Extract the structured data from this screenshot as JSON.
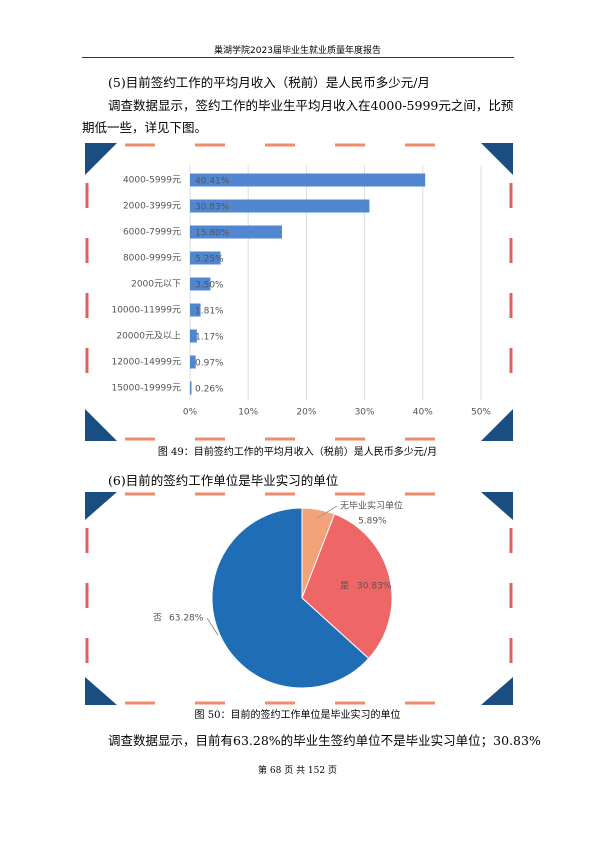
{
  "header": {
    "title": "巢湖学院2023届毕业生就业质量年度报告"
  },
  "section5": {
    "heading": "(5)目前签约工作的平均月收入（税前）是人民币多少元/月",
    "paragraph": "调查数据显示，签约工作的毕业生平均月收入在4000-5999元之间，比预期低一些，详见下图。"
  },
  "section6": {
    "heading": "(6)目前的签约工作单位是毕业实习的单位",
    "paragraph": "调查数据显示，目前有63.28%的毕业生签约单位不是毕业实习单位；30.83%"
  },
  "chart_data": [
    {
      "type": "bar",
      "orientation": "horizontal",
      "caption": "图 49：目前签约工作的平均月收入（税前）是人民币多少元/月",
      "categories": [
        "4000-5999元",
        "2000-3999元",
        "6000-7999元",
        "8000-9999元",
        "2000元以下",
        "10000-11999元",
        "20000元及以上",
        "12000-14999元",
        "15000-19999元"
      ],
      "values": [
        40.41,
        30.83,
        15.8,
        5.25,
        3.5,
        1.81,
        1.17,
        0.97,
        0.26
      ],
      "value_labels": [
        "40.41%",
        "30.83%",
        "15.80%",
        "5.25%",
        "3.50%",
        "1.81%",
        "1.17%",
        "0.97%",
        "0.26%"
      ],
      "color": "#5087d0",
      "xlim": [
        0,
        50
      ],
      "xticks": [
        {
          "value": 0,
          "label": "0%"
        },
        {
          "value": 10,
          "label": "10%"
        },
        {
          "value": 20,
          "label": "20%"
        },
        {
          "value": 30,
          "label": "30%"
        },
        {
          "value": 40,
          "label": "40%"
        },
        {
          "value": 50,
          "label": "50%"
        }
      ],
      "grid": true
    },
    {
      "type": "pie",
      "caption": "图 50：目前的签约工作单位是毕业实习的单位",
      "categories": [
        "无毕业实习单位",
        "是",
        "否"
      ],
      "values": [
        5.89,
        30.83,
        63.28
      ],
      "value_labels": [
        "5.89%",
        "30.83%",
        "63.28%"
      ],
      "colors": [
        "#f4a27a",
        "#ee6666",
        "#1f6db5"
      ]
    }
  ],
  "footer": {
    "page": "第 68 页 共 152 页"
  }
}
